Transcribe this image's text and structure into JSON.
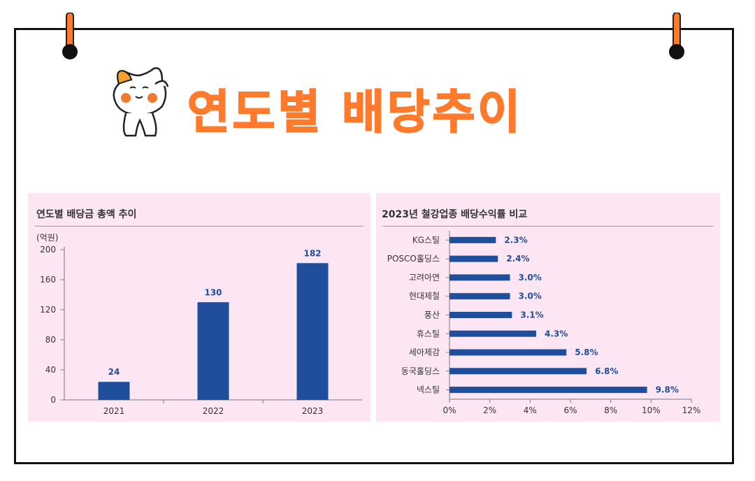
{
  "title": "연도별 배당추이",
  "chart_data": [
    {
      "type": "bar",
      "title": "연도별 배당금 총액 추이",
      "unit_label": "(억원)",
      "categories": [
        "2021",
        "2022",
        "2023"
      ],
      "values": [
        24,
        130,
        182
      ],
      "value_labels": [
        "24",
        "130",
        "182"
      ],
      "ylim": [
        0,
        200
      ],
      "yticks": [
        0,
        40,
        80,
        120,
        160,
        200
      ],
      "ytick_labels": [
        "0",
        "40",
        "80",
        "120",
        "160",
        "200"
      ],
      "grid": false,
      "bar_color": "#1f4e9c",
      "label_color": "#1f4e9c"
    },
    {
      "type": "bar",
      "orientation": "horizontal",
      "title": "2023년 철강업종 배당수익률 비교",
      "categories": [
        "KG스틸",
        "POSCO홀딩스",
        "고려아연",
        "현대제철",
        "풍산",
        "휴스틸",
        "세아제강",
        "동국홀딩스",
        "넥스틸"
      ],
      "values": [
        2.3,
        2.4,
        3.0,
        3.0,
        3.1,
        4.3,
        5.8,
        6.8,
        9.8
      ],
      "value_labels": [
        "2.3%",
        "2.4%",
        "3.0%",
        "3.0%",
        "3.1%",
        "4.3%",
        "5.8%",
        "6.8%",
        "9.8%"
      ],
      "xlim": [
        0,
        12
      ],
      "xticks": [
        0,
        2,
        4,
        6,
        8,
        10,
        12
      ],
      "xtick_labels": [
        "0%",
        "2%",
        "4%",
        "6%",
        "8%",
        "10%",
        "12%"
      ],
      "grid": false,
      "bar_color": "#1f4e9c",
      "label_color": "#1f4e9c"
    }
  ],
  "colors": {
    "title": "#ff7a2a",
    "panel": "#fde6f3",
    "bar": "#1f4e9c"
  }
}
